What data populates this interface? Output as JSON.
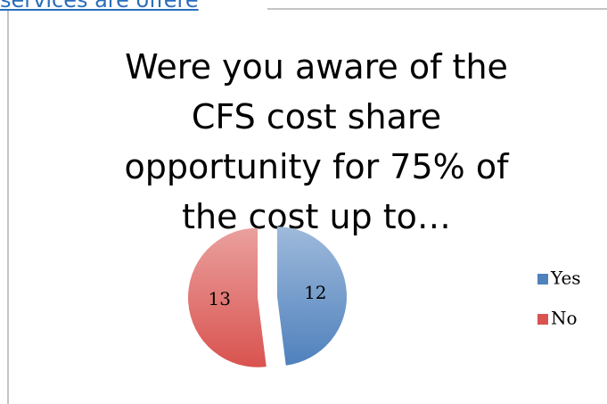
{
  "header_link": "services are offere",
  "chart_data": {
    "type": "pie",
    "title": "Were you aware of the CFS cost share opportunity for 75% of the cost up to…",
    "categories": [
      "Yes",
      "No"
    ],
    "values": [
      12,
      13
    ],
    "colors": [
      "#4f81bd",
      "#d9534f"
    ],
    "legend": "right"
  }
}
